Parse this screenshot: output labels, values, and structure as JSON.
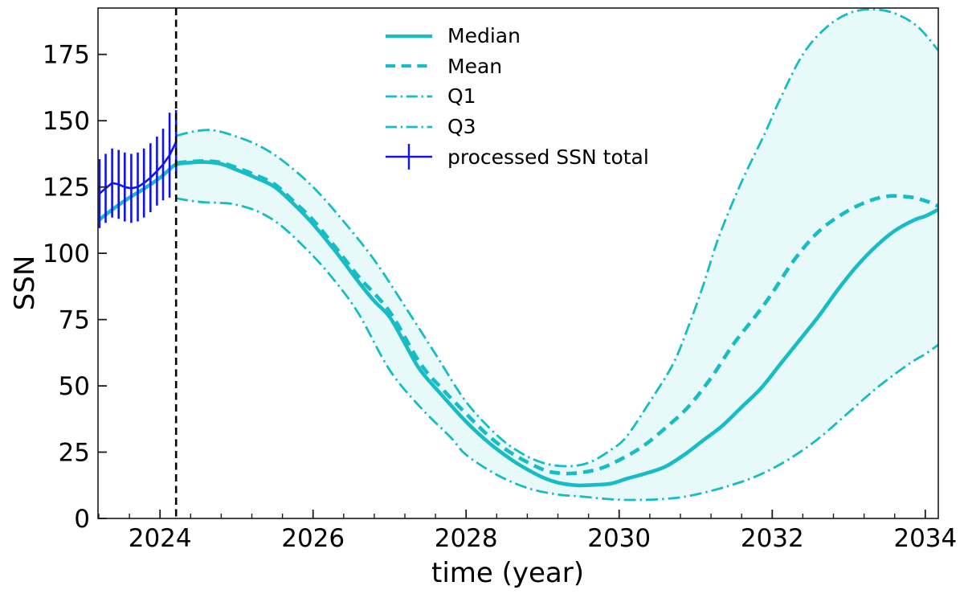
{
  "chart_data": {
    "type": "line",
    "title": "",
    "xlabel": "time (year)",
    "ylabel": "SSN",
    "xlim": [
      2023.19,
      2034.17
    ],
    "ylim": [
      0,
      192.5
    ],
    "x_major_ticks": [
      2024,
      2026,
      2028,
      2030,
      2032,
      2034
    ],
    "x_minor_step": 0.4,
    "y_major_ticks": [
      0,
      25,
      50,
      75,
      100,
      125,
      150,
      175
    ],
    "grid": false,
    "legend_position": "upper-center-left-no-frame",
    "forecast_start": 2024.21,
    "colors": {
      "teal": "#17bcc4",
      "blue": "#1212ea",
      "band_fill": "#e8f9fa",
      "vline": "#000000",
      "axis": "#1a1a1a"
    },
    "vline": {
      "x": 2024.21,
      "color": "#000000",
      "dash": "dashed"
    },
    "band": {
      "upper": "Q3",
      "lower": "Q1",
      "fill": "#e8f9fa"
    },
    "legend": [
      {
        "label": "Median",
        "kind": "line",
        "dash": "solid",
        "width": 4.6,
        "color_key": "teal"
      },
      {
        "label": "Mean",
        "kind": "line",
        "dash": "dashed",
        "width": 4.6,
        "color_key": "teal"
      },
      {
        "label": "Q1",
        "kind": "line",
        "dash": "dashdot",
        "width": 2.8,
        "color_key": "teal"
      },
      {
        "label": "Q3",
        "kind": "line",
        "dash": "dashdot",
        "width": 2.8,
        "color_key": "teal"
      },
      {
        "label": "processed SSN total",
        "kind": "errorbar",
        "width": 2.6,
        "color_key": "blue"
      }
    ],
    "series": [
      {
        "name": "Median",
        "dash": "solid",
        "width": 4.6,
        "color_key": "teal",
        "smooth": true,
        "points": [
          [
            2023.2,
            112.5
          ],
          [
            2023.4,
            117
          ],
          [
            2023.6,
            121
          ],
          [
            2023.8,
            124.5
          ],
          [
            2024.0,
            128.5
          ],
          [
            2024.1,
            131
          ],
          [
            2024.21,
            133.5
          ],
          [
            2024.4,
            134.2
          ],
          [
            2024.6,
            134.4
          ],
          [
            2024.8,
            133.7
          ],
          [
            2025.0,
            131.5
          ],
          [
            2025.25,
            128.5
          ],
          [
            2025.5,
            125
          ],
          [
            2025.75,
            118.5
          ],
          [
            2026.0,
            111
          ],
          [
            2026.3,
            100.5
          ],
          [
            2026.6,
            89
          ],
          [
            2026.8,
            82
          ],
          [
            2027.0,
            76
          ],
          [
            2027.2,
            66
          ],
          [
            2027.4,
            56
          ],
          [
            2027.7,
            46
          ],
          [
            2028.0,
            36.5
          ],
          [
            2028.3,
            28.5
          ],
          [
            2028.6,
            22
          ],
          [
            2028.8,
            18.5
          ],
          [
            2029.0,
            15.5
          ],
          [
            2029.2,
            13.5
          ],
          [
            2029.45,
            12.5
          ],
          [
            2029.7,
            12.7
          ],
          [
            2029.9,
            13.2
          ],
          [
            2030.1,
            15
          ],
          [
            2030.35,
            17
          ],
          [
            2030.6,
            19.5
          ],
          [
            2030.85,
            24
          ],
          [
            2031.1,
            29.5
          ],
          [
            2031.35,
            35
          ],
          [
            2031.6,
            42
          ],
          [
            2031.85,
            49
          ],
          [
            2032.1,
            58
          ],
          [
            2032.35,
            67
          ],
          [
            2032.6,
            76
          ],
          [
            2032.85,
            86
          ],
          [
            2033.1,
            95
          ],
          [
            2033.35,
            102.5
          ],
          [
            2033.6,
            108.5
          ],
          [
            2033.85,
            112.5
          ],
          [
            2034.0,
            114
          ],
          [
            2034.17,
            116.5
          ]
        ]
      },
      {
        "name": "Mean",
        "dash": "dashed",
        "width": 4.6,
        "color_key": "teal",
        "smooth": true,
        "points": [
          [
            2024.21,
            134
          ],
          [
            2024.4,
            134.6
          ],
          [
            2024.6,
            134.8
          ],
          [
            2024.8,
            134.2
          ],
          [
            2025.0,
            132.3
          ],
          [
            2025.25,
            129.5
          ],
          [
            2025.5,
            126
          ],
          [
            2025.75,
            119.5
          ],
          [
            2026.0,
            112.5
          ],
          [
            2026.3,
            102
          ],
          [
            2026.6,
            91
          ],
          [
            2027.0,
            78
          ],
          [
            2027.4,
            58.5
          ],
          [
            2027.7,
            48.5
          ],
          [
            2028.0,
            39.5
          ],
          [
            2028.3,
            31
          ],
          [
            2028.6,
            24.5
          ],
          [
            2029.0,
            18.5
          ],
          [
            2029.25,
            17
          ],
          [
            2029.5,
            17.3
          ],
          [
            2029.75,
            18.8
          ],
          [
            2030.0,
            22
          ],
          [
            2030.3,
            27
          ],
          [
            2030.6,
            34
          ],
          [
            2030.9,
            42
          ],
          [
            2031.2,
            53
          ],
          [
            2031.5,
            66
          ],
          [
            2031.8,
            77
          ],
          [
            2032.0,
            85
          ],
          [
            2032.3,
            98
          ],
          [
            2032.6,
            108
          ],
          [
            2032.9,
            114.5
          ],
          [
            2033.2,
            119
          ],
          [
            2033.5,
            121.5
          ],
          [
            2033.8,
            121.2
          ],
          [
            2034.0,
            119.8
          ],
          [
            2034.17,
            117.8
          ]
        ]
      },
      {
        "name": "Q1",
        "dash": "dashdot",
        "width": 2.8,
        "color_key": "teal",
        "smooth": true,
        "points": [
          [
            2024.21,
            120.8
          ],
          [
            2024.4,
            119.8
          ],
          [
            2024.6,
            119.2
          ],
          [
            2024.8,
            119
          ],
          [
            2025.0,
            118.3
          ],
          [
            2025.3,
            115.5
          ],
          [
            2025.6,
            110
          ],
          [
            2026.0,
            99
          ],
          [
            2026.3,
            89
          ],
          [
            2026.6,
            77
          ],
          [
            2027.0,
            56
          ],
          [
            2027.4,
            42
          ],
          [
            2027.8,
            30.5
          ],
          [
            2028.0,
            24
          ],
          [
            2028.4,
            16.5
          ],
          [
            2028.8,
            11.5
          ],
          [
            2029.2,
            9
          ],
          [
            2029.5,
            8.3
          ],
          [
            2029.9,
            7.2
          ],
          [
            2030.3,
            7
          ],
          [
            2030.7,
            7.6
          ],
          [
            2031.0,
            9
          ],
          [
            2031.4,
            12
          ],
          [
            2031.8,
            16
          ],
          [
            2032.2,
            22
          ],
          [
            2032.6,
            30
          ],
          [
            2033.0,
            40
          ],
          [
            2033.4,
            50
          ],
          [
            2033.8,
            58.5
          ],
          [
            2034.0,
            62
          ],
          [
            2034.17,
            65.5
          ]
        ]
      },
      {
        "name": "Q3",
        "dash": "dashdot",
        "width": 2.8,
        "color_key": "teal",
        "smooth": true,
        "points": [
          [
            2024.21,
            144.3
          ],
          [
            2024.45,
            146
          ],
          [
            2024.7,
            146.4
          ],
          [
            2025.0,
            144
          ],
          [
            2025.3,
            140.5
          ],
          [
            2025.6,
            135
          ],
          [
            2026.0,
            125
          ],
          [
            2026.4,
            112
          ],
          [
            2026.8,
            97.5
          ],
          [
            2027.2,
            80
          ],
          [
            2027.6,
            62
          ],
          [
            2028.0,
            44
          ],
          [
            2028.4,
            31.5
          ],
          [
            2028.7,
            25
          ],
          [
            2029.0,
            21
          ],
          [
            2029.3,
            19.7
          ],
          [
            2029.6,
            21
          ],
          [
            2029.9,
            26
          ],
          [
            2030.1,
            31
          ],
          [
            2030.4,
            44
          ],
          [
            2030.7,
            58
          ],
          [
            2030.9,
            72
          ],
          [
            2031.1,
            88
          ],
          [
            2031.3,
            106
          ],
          [
            2031.6,
            127
          ],
          [
            2031.9,
            145
          ],
          [
            2032.1,
            158
          ],
          [
            2032.4,
            175
          ],
          [
            2032.7,
            185
          ],
          [
            2033.0,
            190.5
          ],
          [
            2033.3,
            192
          ],
          [
            2033.6,
            190.5
          ],
          [
            2033.9,
            185.5
          ],
          [
            2034.17,
            176.5
          ]
        ]
      },
      {
        "name": "processed SSN total",
        "kind": "errorbar",
        "dash": "solid",
        "width": 2.6,
        "color_key": "blue",
        "smooth": false,
        "points": [
          [
            2023.21,
            122.5,
            13
          ],
          [
            2023.29,
            124.5,
            13
          ],
          [
            2023.375,
            126.5,
            13
          ],
          [
            2023.46,
            126,
            13
          ],
          [
            2023.54,
            125,
            13
          ],
          [
            2023.625,
            124.5,
            13
          ],
          [
            2023.71,
            125,
            13
          ],
          [
            2023.79,
            126.5,
            13
          ],
          [
            2023.875,
            128.5,
            13
          ],
          [
            2023.96,
            131,
            13
          ],
          [
            2024.04,
            133.5,
            13.5
          ],
          [
            2024.125,
            137,
            16
          ],
          [
            2024.21,
            142,
            12
          ]
        ]
      }
    ]
  }
}
